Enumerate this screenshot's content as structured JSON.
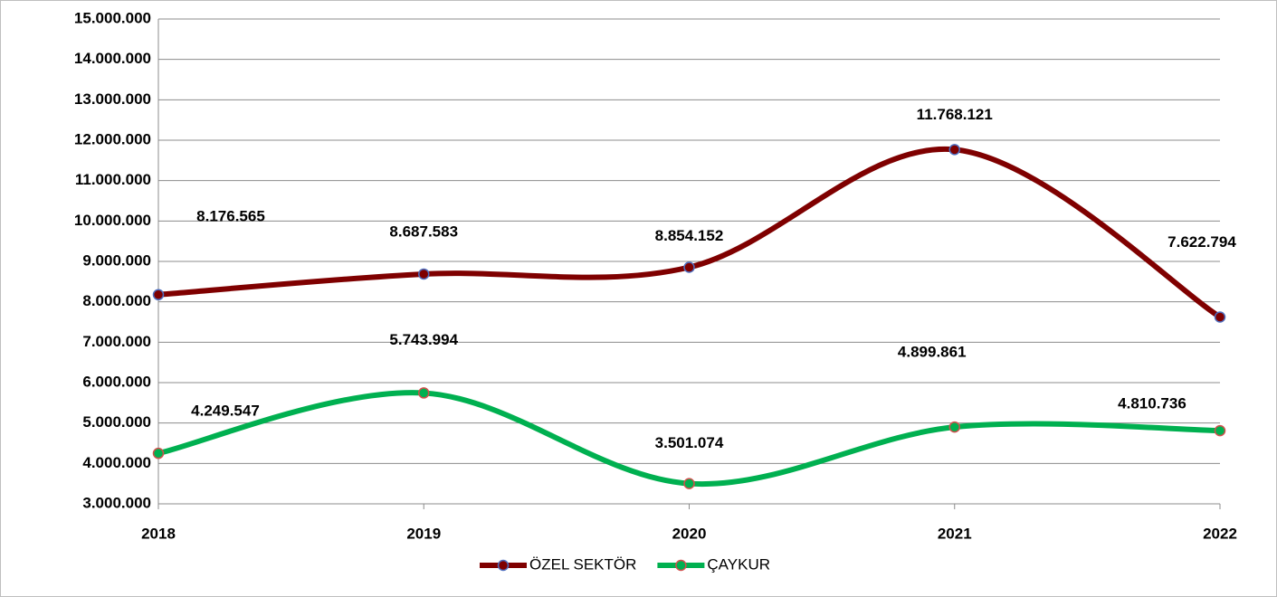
{
  "chart_data": {
    "type": "line",
    "categories": [
      "2018",
      "2019",
      "2020",
      "2021",
      "2022"
    ],
    "series": [
      {
        "name": "ÖZEL SEKTÖR",
        "color": "#7f0000",
        "marker_edge": "#4f6fbf",
        "values": [
          8176565,
          8687583,
          8854152,
          11768121,
          7622794
        ],
        "value_labels": [
          "8.176.565",
          "8.687.583",
          "8.854.152",
          "11.768.121",
          "7.622.794"
        ]
      },
      {
        "name": "ÇAYKUR",
        "color": "#00b050",
        "marker_edge": "#d0504d",
        "values": [
          4249547,
          5743994,
          3501074,
          4899861,
          4810736
        ],
        "value_labels": [
          "4.249.547",
          "5.743.994",
          "3.501.074",
          "4.899.861",
          "4.810.736"
        ]
      }
    ],
    "ylim": [
      3000000,
      15000000
    ],
    "yticks": [
      {
        "value": 3000000,
        "label": "3.000.000"
      },
      {
        "value": 4000000,
        "label": "4.000.000"
      },
      {
        "value": 5000000,
        "label": "5.000.000"
      },
      {
        "value": 6000000,
        "label": "6.000.000"
      },
      {
        "value": 7000000,
        "label": "7.000.000"
      },
      {
        "value": 8000000,
        "label": "8.000.000"
      },
      {
        "value": 9000000,
        "label": "9.000.000"
      },
      {
        "value": 10000000,
        "label": "10.000.000"
      },
      {
        "value": 11000000,
        "label": "11.000.000"
      },
      {
        "value": 12000000,
        "label": "12.000.000"
      },
      {
        "value": 13000000,
        "label": "13.000.000"
      },
      {
        "value": 14000000,
        "label": "14.000.000"
      },
      {
        "value": 15000000,
        "label": "15.000.000"
      }
    ],
    "grid": true,
    "smooth": true,
    "legend": "bottom"
  }
}
